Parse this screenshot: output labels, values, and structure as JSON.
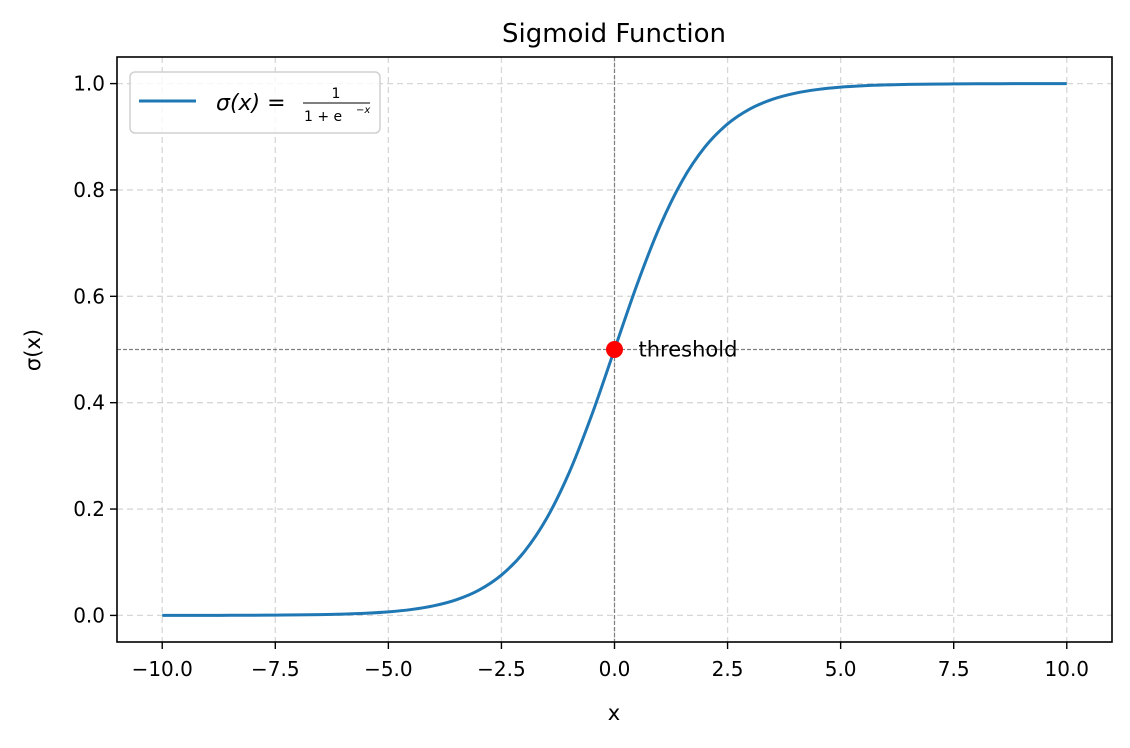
{
  "chart_data": {
    "type": "line",
    "title": "Sigmoid Function",
    "xlabel": "x",
    "ylabel": "σ(x)",
    "xlim": [
      -11,
      11
    ],
    "ylim": [
      -0.05,
      1.05
    ],
    "grid": true,
    "legend_placement": "top-left",
    "x_ticks": [
      -10,
      -7.5,
      -5,
      -2.5,
      0,
      2.5,
      5,
      7.5,
      10
    ],
    "x_tick_labels": [
      "−10.0",
      "−7.5",
      "−5.0",
      "−2.5",
      "0.0",
      "2.5",
      "5.0",
      "7.5",
      "10.0"
    ],
    "y_ticks": [
      0,
      0.2,
      0.4,
      0.6,
      0.8,
      1.0
    ],
    "y_tick_labels": [
      "0.0",
      "0.2",
      "0.4",
      "0.6",
      "0.8",
      "1.0"
    ],
    "series": [
      {
        "name": "σ(x) = 1/(1+e^−x)",
        "legend": {
          "lhs": "σ(x) =",
          "numerator": "1",
          "denominator": "1 + e",
          "exponent": "−x"
        },
        "color": "#1f77b4",
        "x": [
          -10,
          -9.5,
          -9,
          -8.5,
          -8,
          -7.5,
          -7,
          -6.5,
          -6,
          -5.5,
          -5,
          -4.5,
          -4,
          -3.5,
          -3,
          -2.5,
          -2,
          -1.5,
          -1,
          -0.5,
          0,
          0.5,
          1,
          1.5,
          2,
          2.5,
          3,
          3.5,
          4,
          4.5,
          5,
          5.5,
          6,
          6.5,
          7,
          7.5,
          8,
          8.5,
          9,
          9.5,
          10
        ],
        "y": [
          0.0,
          0.0001,
          0.0001,
          0.0002,
          0.0003,
          0.0006,
          0.0009,
          0.0015,
          0.0025,
          0.0041,
          0.0067,
          0.011,
          0.018,
          0.0293,
          0.0474,
          0.0759,
          0.1192,
          0.1824,
          0.2689,
          0.3775,
          0.5,
          0.6225,
          0.7311,
          0.8176,
          0.8808,
          0.9241,
          0.9526,
          0.9707,
          0.982,
          0.989,
          0.9933,
          0.9959,
          0.9975,
          0.9985,
          0.9991,
          0.9994,
          0.9997,
          0.9998,
          0.9999,
          0.9999,
          1.0
        ]
      }
    ],
    "reference_lines": {
      "vertical_x": 0,
      "horizontal_y": 0.5,
      "color": "#808080"
    },
    "annotations": [
      {
        "x": 0,
        "y": 0.5,
        "marker_color": "#ff0000",
        "text": "threshold"
      }
    ]
  }
}
